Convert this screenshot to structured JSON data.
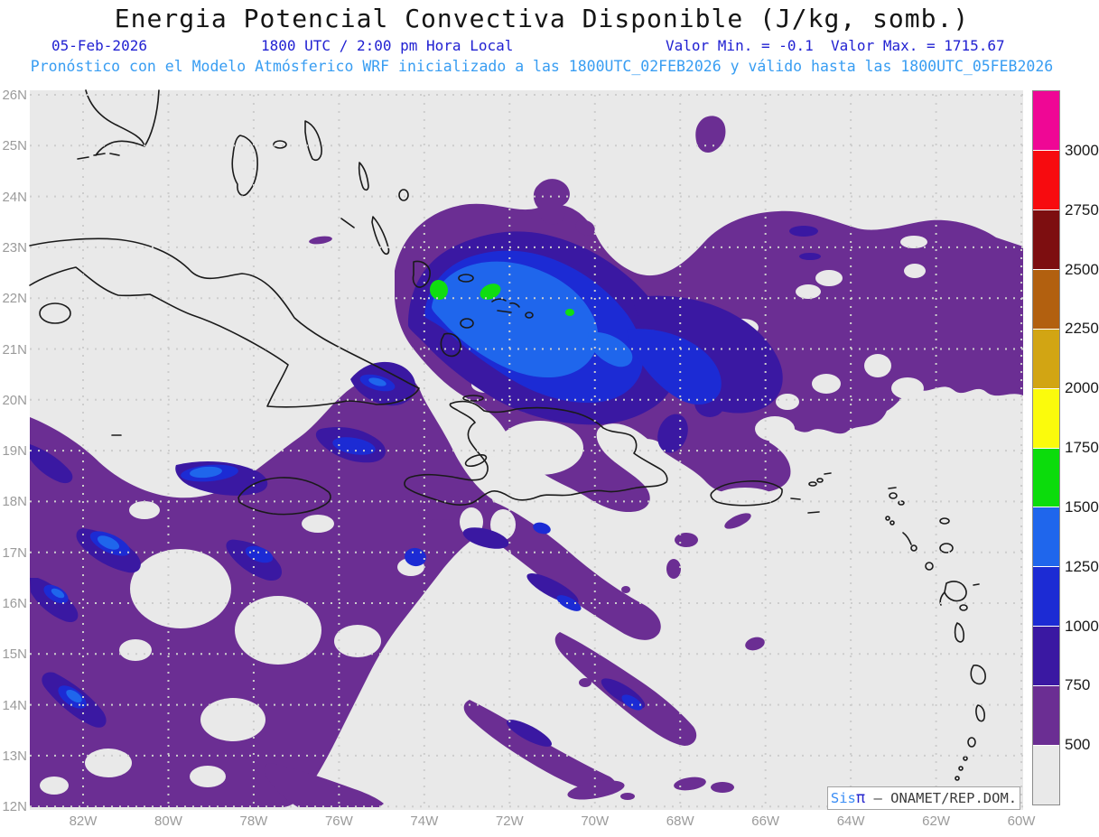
{
  "header": {
    "title": "Energia Potencial Convectiva Disponible (J/kg, somb.)",
    "date": "05-Feb-2026",
    "time_local": "1800 UTC / 2:00 pm Hora Local",
    "min_label": "Valor Min. = -0.1",
    "max_label": "Valor Max. = 1715.67",
    "forecast_line": "Pronóstico con el Modelo Atmósferico WRF inicializado a las 1800UTC_02FEB2026 y válido hasta las  1800UTC_05FEB2026"
  },
  "axes": {
    "lat_labels": [
      "26N",
      "25N",
      "24N",
      "23N",
      "22N",
      "21N",
      "20N",
      "19N",
      "18N",
      "17N",
      "16N",
      "15N",
      "14N",
      "13N",
      "12N"
    ],
    "lon_labels": [
      "82W",
      "80W",
      "78W",
      "76W",
      "74W",
      "72W",
      "70W",
      "68W",
      "66W",
      "64W",
      "62W",
      "60W"
    ]
  },
  "colorbar": {
    "colors": [
      "#ef0795",
      "#f70b0f",
      "#7d0e10",
      "#b2600f",
      "#d2a513",
      "#fbfb0c",
      "#0cdc0c",
      "#1f66ec",
      "#1c2bd4",
      "#3a18a2",
      "#6b2e93",
      "#e9e9e9"
    ],
    "tick_labels": [
      "3000",
      "2750",
      "2500",
      "2250",
      "2000",
      "1750",
      "1500",
      "1250",
      "1000",
      "750",
      "500"
    ]
  },
  "watermark": {
    "brand": "Sis",
    "pi": "π",
    "separator": " – ",
    "org": "ONAMET/REP.DOM."
  },
  "chart_data": {
    "type": "heatmap",
    "title": "Energia Potencial Convectiva Disponible (J/kg, somb.)",
    "variable": "CAPE",
    "units": "J/kg",
    "model": "WRF",
    "run_date": "05-Feb-2026",
    "valid_time": "1800 UTC / 2:00 pm Hora Local",
    "initialized": "1800UTC_02FEB2026",
    "valid_until": "1800UTC_05FEB2026",
    "value_min": -0.1,
    "value_max": 1715.67,
    "lon_range_deg_west": [
      83.25,
      60
    ],
    "lat_range_deg_north": [
      12,
      26
    ],
    "lon_tick_step_deg": 2,
    "lat_tick_step_deg": 1,
    "contour_levels": [
      500,
      750,
      1000,
      1250,
      1500,
      1750,
      2000,
      2250,
      2500,
      2750,
      3000
    ],
    "palette": {
      "0": "#e9e9e9",
      "500": "#6b2e93",
      "750": "#3a18a2",
      "1000": "#1c2bd4",
      "1250": "#1f66ec",
      "1500": "#10dd10",
      "1750": "#fbfb0c",
      "2000": "#d2a513",
      "2250": "#b2600f",
      "2500": "#7d0e10",
      "2750": "#f70b0f",
      "3000": "#ef0795"
    },
    "observed_regions": [
      {
        "range": "500-750",
        "color_name": "purple",
        "where": "amplia zona del Atlántico al norte y este de La Española hasta 60W (18N-25N), franja suroeste del Caribe desde 83W/12-18N y filamentos orientados NO-SE al sur de La Española"
      },
      {
        "range": "750-1000",
        "color_name": "indigo",
        "where": "núcleo al noreste de La Española (69W-75W / 19N-23N) y bandas internas del Caribe suroccidental"
      },
      {
        "range": "1000-1250",
        "color_name": "blue",
        "where": "interior del núcleo atlántico entre 70W-74.5W / 19.5N-22.8N y pequeños núcleos al suroeste"
      },
      {
        "range": "1250-1500",
        "color_name": "bright-blue",
        "where": "centro del núcleo al noreste de La Española (71W-74W / 20.5N-22.5N)"
      },
      {
        "range": "1500-1750",
        "color_name": "green",
        "where": "tres máximos puntuales cerca de 22N entre 71W y 74W (valor máximo 1715.67 J/kg)"
      }
    ],
    "grid_shown": true,
    "legend_position": "right-colorbar"
  }
}
